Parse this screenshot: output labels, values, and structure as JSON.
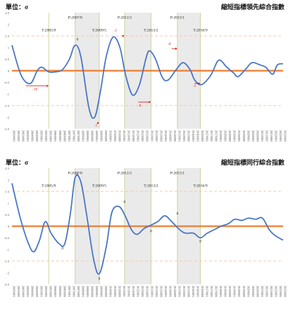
{
  "chart_data": [
    {
      "type": "line",
      "unit_label": "單位：σ",
      "title": "縮短指標領先綜合指數",
      "ylim": [
        -2.5,
        2.5
      ],
      "yticks": [
        "2.5",
        "2",
        "1.5",
        "1",
        "0.5",
        "0",
        "-0.5",
        "-1",
        "-1.5",
        "-2",
        "-2.5"
      ],
      "x_start": "2003M01",
      "x_end": "2022M09",
      "tick_labels": [
        "2003M01",
        "2003M05",
        "2003M09",
        "2004M01",
        "2004M05",
        "2004M09",
        "2005M01",
        "2005M05",
        "2005M09",
        "2006M01",
        "2006M05",
        "2006M09",
        "2007M01",
        "2007M05",
        "2007M09",
        "2008M01",
        "2008M05",
        "2008M09",
        "2009M01",
        "2009M05",
        "2009M09",
        "2010M01",
        "2010M05",
        "2010M09",
        "2011M01",
        "2011M05",
        "2011M09",
        "2012M01",
        "2012M05",
        "2012M09",
        "2013M01",
        "2013M05",
        "2013M09",
        "2014M01",
        "2014M05",
        "2014M09",
        "2015M01",
        "2015M05",
        "2015M09",
        "2016M01",
        "2016M05",
        "2016M09",
        "2017M01",
        "2017M05",
        "2017M09",
        "2018M01",
        "2018M05",
        "2018M09",
        "2019M01",
        "2019M05",
        "2019M09",
        "2020M01",
        "2020M05",
        "2020M09",
        "2021M01",
        "2021M05",
        "2021M09",
        "2022M01",
        "2022M05",
        "2022M09"
      ],
      "series": [
        {
          "color": "#4a77c4",
          "points": [
            [
              "2003-01",
              1.1
            ],
            [
              "2003-09",
              -0.2
            ],
            [
              "2004-05",
              -0.55
            ],
            [
              "2004-11",
              0.0
            ],
            [
              "2005-03",
              0.15
            ],
            [
              "2005-09",
              -0.05
            ],
            [
              "2006-03",
              -0.05
            ],
            [
              "2006-09",
              0.05
            ],
            [
              "2007-03",
              0.5
            ],
            [
              "2007-08",
              1.1
            ],
            [
              "2008-01",
              0.6
            ],
            [
              "2008-08",
              -1.6
            ],
            [
              "2009-01",
              -2.0
            ],
            [
              "2009-06",
              -0.9
            ],
            [
              "2009-11",
              0.6
            ],
            [
              "2010-05",
              1.45
            ],
            [
              "2010-11",
              1.0
            ],
            [
              "2011-04",
              -0.2
            ],
            [
              "2011-10",
              -1.05
            ],
            [
              "2012-04",
              -0.6
            ],
            [
              "2012-10",
              0.6
            ],
            [
              "2013-01",
              0.85
            ],
            [
              "2013-06",
              0.5
            ],
            [
              "2013-12",
              -0.3
            ],
            [
              "2014-05",
              -0.4
            ],
            [
              "2014-12",
              0.05
            ],
            [
              "2015-06",
              0.35
            ],
            [
              "2015-12",
              0.05
            ],
            [
              "2016-04",
              -0.4
            ],
            [
              "2016-10",
              -0.6
            ],
            [
              "2017-06",
              -0.2
            ],
            [
              "2018-01",
              0.45
            ],
            [
              "2018-08",
              0.15
            ],
            [
              "2019-02",
              -0.1
            ],
            [
              "2019-06",
              -0.25
            ],
            [
              "2020-01",
              0.1
            ],
            [
              "2020-06",
              0.35
            ],
            [
              "2021-01",
              0.25
            ],
            [
              "2021-06",
              0.15
            ],
            [
              "2021-12",
              -0.15
            ],
            [
              "2022-04",
              0.25
            ],
            [
              "2022-09",
              0.3
            ]
          ]
        }
      ],
      "shaded_periods": [
        [
          "2007-08",
          "2009-05"
        ],
        [
          "2011-03",
          "2013-02"
        ],
        [
          "2015-01",
          "2016-09"
        ]
      ],
      "reference_lines": [
        {
          "y": 0,
          "color": "#ee7d31"
        },
        {
          "y": 1.5,
          "color": "#f5c8a8",
          "dashed": true
        },
        {
          "y": -1.5,
          "color": "#f5c8a8",
          "dashed": true
        }
      ],
      "period_labels": [
        {
          "text": "T:2005/9",
          "date": "2005-09",
          "y": 1.7
        },
        {
          "text": "P:2007/8",
          "date": "2007-08",
          "y": 2.25
        },
        {
          "text": "T:2009/5",
          "date": "2009-05",
          "y": 1.7
        },
        {
          "text": "P:2011/3",
          "date": "2011-03",
          "y": 2.25
        },
        {
          "text": "T:2013/2",
          "date": "2013-02",
          "y": 1.7
        },
        {
          "text": "P:2015/1",
          "date": "2015-01",
          "y": 2.25
        },
        {
          "text": "T:2016/9",
          "date": "2016-09",
          "y": 1.7
        }
      ],
      "lead_labels": [
        {
          "text": "-18",
          "date": "2004-09",
          "y": -0.85
        },
        {
          "text": "0",
          "date": "2007-10",
          "y": 1.3
        },
        {
          "text": "-1",
          "date": "2009-02",
          "y": -2.4
        },
        {
          "text": "-2",
          "date": "2010-07",
          "y": 1.7
        },
        {
          "text": "-6",
          "date": "2012-04",
          "y": -1.55
        },
        {
          "text": "-8",
          "date": "2014-06",
          "y": 1.1
        },
        {
          "text": "-5",
          "date": "2016-04",
          "y": -0.7
        }
      ],
      "lead_arrows": [
        {
          "from": "2004-01",
          "to": "2005-09",
          "y": -0.65
        },
        {
          "from": "2009-04",
          "to": "2009-05",
          "y": -2.25
        },
        {
          "from": "2011-01",
          "to": "2011-03",
          "y": 1.5
        },
        {
          "from": "2012-03",
          "to": "2013-02",
          "y": -1.35
        },
        {
          "from": "2014-08",
          "to": "2015-01",
          "y": 0.95
        },
        {
          "from": "2016-04",
          "to": "2016-09",
          "y": -0.55
        }
      ]
    },
    {
      "type": "line",
      "unit_label": "單位：σ",
      "title": "縮短指標同行綜合指數",
      "ylim": [
        -2.5,
        2.5
      ],
      "yticks": [
        "2.5",
        "2",
        "1.5",
        "1",
        "0.5",
        "0",
        "-0.5",
        "-1",
        "-1.5",
        "-2",
        "-2.5"
      ],
      "x_start": "2003M01",
      "x_end": "2022M09",
      "tick_labels": [
        "2003M01",
        "2003M05",
        "2003M09",
        "2004M01",
        "2004M05",
        "2004M09",
        "2005M01",
        "2005M05",
        "2005M09",
        "2006M01",
        "2006M05",
        "2006M09",
        "2007M01",
        "2007M05",
        "2007M09",
        "2008M01",
        "2008M05",
        "2008M09",
        "2009M01",
        "2009M05",
        "2009M09",
        "2010M01",
        "2010M05",
        "2010M09",
        "2011M01",
        "2011M05",
        "2011M09",
        "2012M01",
        "2012M05",
        "2012M09",
        "2013M01",
        "2013M05",
        "2013M09",
        "2014M01",
        "2014M05",
        "2014M09",
        "2015M01",
        "2015M05",
        "2015M09",
        "2016M01",
        "2016M05",
        "2016M09",
        "2017M01",
        "2017M05",
        "2017M09",
        "2018M01",
        "2018M05",
        "2018M09",
        "2019M01",
        "2019M05",
        "2019M09",
        "2020M01",
        "2020M05",
        "2020M09",
        "2021M01",
        "2021M05",
        "2021M09",
        "2022M01",
        "2022M05",
        "2022M09"
      ],
      "series": [
        {
          "color": "#4a77c4",
          "points": [
            [
              "2003-01",
              1.85
            ],
            [
              "2003-08",
              0.4
            ],
            [
              "2004-03",
              -0.7
            ],
            [
              "2004-08",
              -1.1
            ],
            [
              "2005-01",
              -0.6
            ],
            [
              "2005-06",
              0.2
            ],
            [
              "2005-11",
              -0.3
            ],
            [
              "2006-06",
              -0.75
            ],
            [
              "2006-11",
              -0.75
            ],
            [
              "2007-04",
              0.6
            ],
            [
              "2007-08",
              2.1
            ],
            [
              "2008-01",
              1.9
            ],
            [
              "2008-06",
              0.5
            ],
            [
              "2008-12",
              -1.4
            ],
            [
              "2009-05",
              -2.05
            ],
            [
              "2009-11",
              -0.9
            ],
            [
              "2010-04",
              0.6
            ],
            [
              "2010-10",
              0.85
            ],
            [
              "2011-03",
              0.5
            ],
            [
              "2011-09",
              -0.15
            ],
            [
              "2012-02",
              -0.35
            ],
            [
              "2012-08",
              -0.1
            ],
            [
              "2013-02",
              0.05
            ],
            [
              "2013-08",
              0.2
            ],
            [
              "2014-02",
              0.45
            ],
            [
              "2014-08",
              0.2
            ],
            [
              "2015-03",
              -0.15
            ],
            [
              "2015-08",
              -0.3
            ],
            [
              "2016-03",
              -0.3
            ],
            [
              "2016-09",
              -0.5
            ],
            [
              "2017-03",
              -0.3
            ],
            [
              "2017-09",
              -0.15
            ],
            [
              "2018-03",
              0.0
            ],
            [
              "2018-09",
              0.1
            ],
            [
              "2019-03",
              0.3
            ],
            [
              "2019-09",
              0.25
            ],
            [
              "2020-03",
              0.35
            ],
            [
              "2020-09",
              0.3
            ],
            [
              "2021-03",
              0.35
            ],
            [
              "2021-09",
              -0.15
            ],
            [
              "2022-02",
              -0.4
            ],
            [
              "2022-09",
              -0.6
            ]
          ]
        }
      ],
      "shaded_periods": [
        [
          "2007-08",
          "2009-05"
        ],
        [
          "2011-03",
          "2013-02"
        ],
        [
          "2015-01",
          "2016-09"
        ]
      ],
      "reference_lines": [
        {
          "y": 0,
          "color": "#ee7d31"
        },
        {
          "y": 1.5,
          "color": "#f5c8a8",
          "dashed": true
        },
        {
          "y": -1.5,
          "color": "#f5c8a8",
          "dashed": true
        }
      ],
      "period_labels": [
        {
          "text": "T:2005/9",
          "date": "2005-09",
          "y": 1.7
        },
        {
          "text": "P:2007/8",
          "date": "2007-08",
          "y": 2.25
        },
        {
          "text": "T:2009/5",
          "date": "2009-05",
          "y": 1.7
        },
        {
          "text": "P:2011/3",
          "date": "2011-03",
          "y": 2.25
        },
        {
          "text": "T:2013/2",
          "date": "2013-02",
          "y": 1.7
        },
        {
          "text": "P:2015/1",
          "date": "2015-01",
          "y": 2.25
        },
        {
          "text": "T:2016/9",
          "date": "2016-09",
          "y": 1.7
        }
      ],
      "lead_labels": [
        {
          "text": "0",
          "date": "2006-09",
          "y": -1.0
        },
        {
          "text": "0",
          "date": "2007-10",
          "y": 2.2
        },
        {
          "text": "0",
          "date": "2009-05",
          "y": -2.3
        },
        {
          "text": "0",
          "date": "2011-03",
          "y": 1.0
        },
        {
          "text": "0",
          "date": "2013-02",
          "y": -0.25
        },
        {
          "text": "0",
          "date": "2015-01",
          "y": 0.5
        },
        {
          "text": "0",
          "date": "2016-09",
          "y": -0.7
        }
      ],
      "lead_arrows": []
    }
  ]
}
